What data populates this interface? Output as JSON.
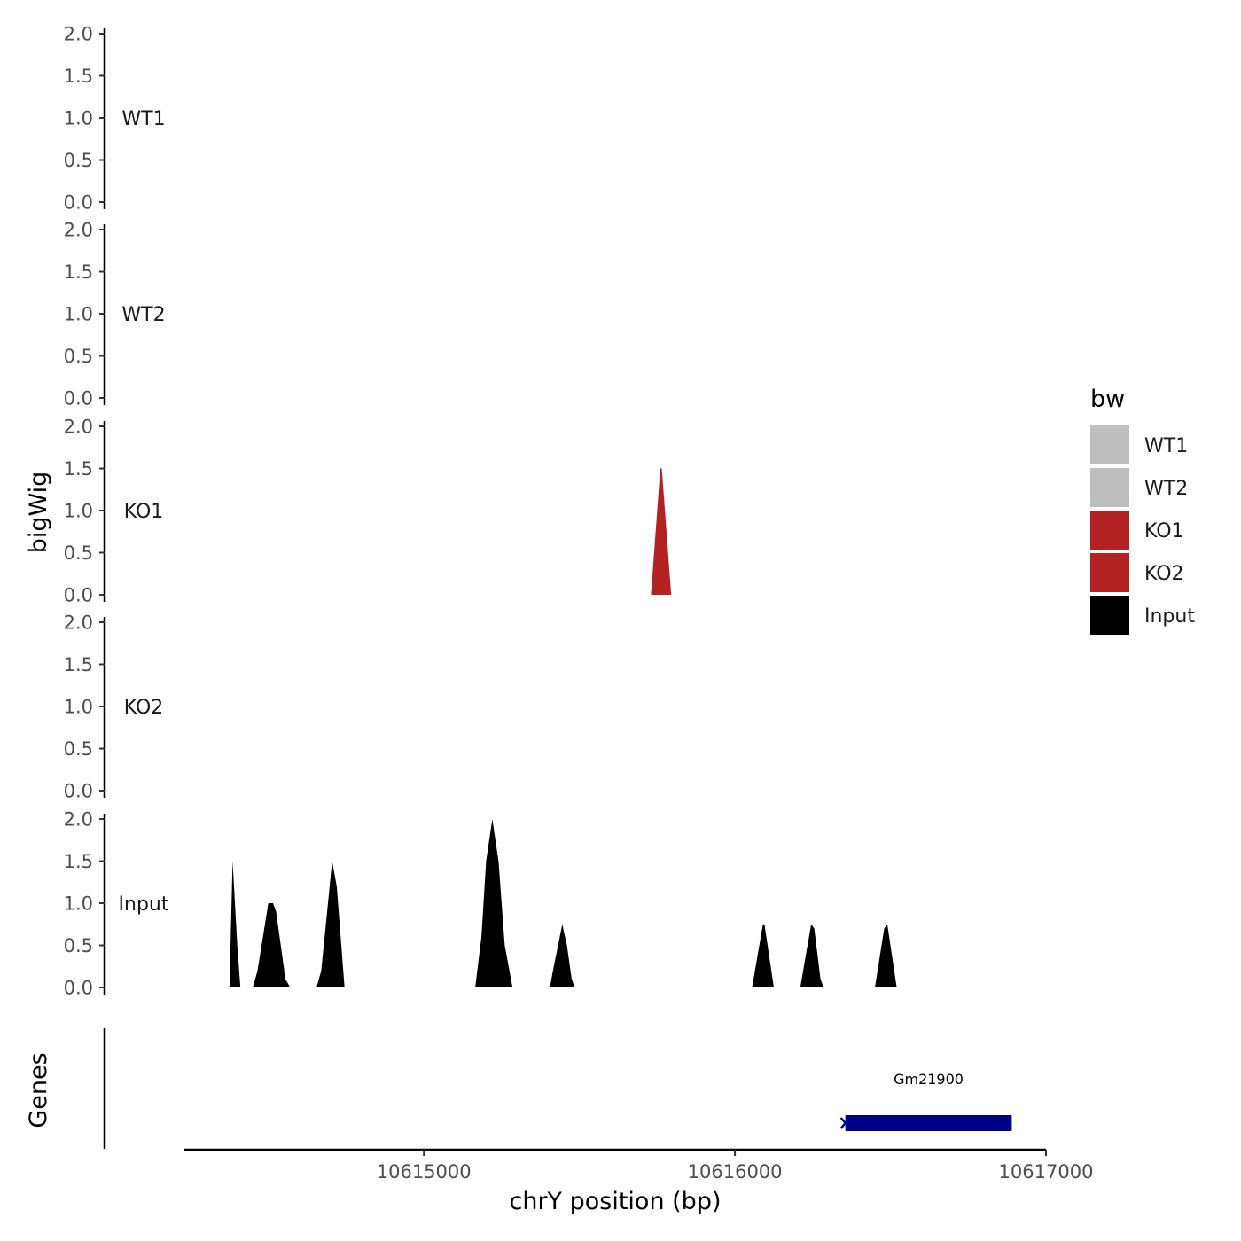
{
  "chart_data": {
    "type": "area",
    "xlabel": "chrY position (bp)",
    "ylabel": "bigWig",
    "genes_label": "Genes",
    "xlim": [
      10614230,
      10617000
    ],
    "ylim": [
      0,
      2
    ],
    "x_ticks": [
      10615000,
      10616000,
      10617000
    ],
    "x_tick_labels": [
      "10615000",
      "10616000",
      "10617000"
    ],
    "y_ticks": [
      0,
      0.5,
      1,
      1.5,
      2
    ],
    "y_tick_labels": [
      "0.0",
      "0.5",
      "1.0",
      "1.5",
      "2.0"
    ],
    "tracks": [
      {
        "name": "WT1",
        "color": "#bebebe",
        "points": []
      },
      {
        "name": "WT2",
        "color": "#bebebe",
        "points": []
      },
      {
        "name": "KO1",
        "color": "#b22222",
        "points": [
          [
            10615730,
            0
          ],
          [
            10615760,
            1.5
          ],
          [
            10615765,
            1.5
          ],
          [
            10615795,
            0
          ]
        ]
      },
      {
        "name": "KO2",
        "color": "#b22222",
        "points": []
      },
      {
        "name": "Input",
        "color": "#000000",
        "points": [
          [
            10614375,
            0
          ],
          [
            10614385,
            1.5
          ],
          [
            10614400,
            0.5
          ],
          [
            10614410,
            0
          ],
          [
            10614410,
            null
          ],
          [
            10614450,
            0
          ],
          [
            10614465,
            0.2
          ],
          [
            10614500,
            1.0
          ],
          [
            10614515,
            1.0
          ],
          [
            10614525,
            0.9
          ],
          [
            10614555,
            0.1
          ],
          [
            10614570,
            0
          ],
          [
            10614570,
            null
          ],
          [
            10614655,
            0
          ],
          [
            10614670,
            0.2
          ],
          [
            10614705,
            1.5
          ],
          [
            10614720,
            1.2
          ],
          [
            10614745,
            0
          ],
          [
            10614745,
            null
          ],
          [
            10615165,
            0
          ],
          [
            10615185,
            0.6
          ],
          [
            10615200,
            1.5
          ],
          [
            10615220,
            2.0
          ],
          [
            10615240,
            1.5
          ],
          [
            10615260,
            0.5
          ],
          [
            10615285,
            0
          ],
          [
            10615285,
            null
          ],
          [
            10615405,
            0
          ],
          [
            10615415,
            0.2
          ],
          [
            10615445,
            0.75
          ],
          [
            10615460,
            0.5
          ],
          [
            10615475,
            0.1
          ],
          [
            10615485,
            0
          ],
          [
            10615485,
            null
          ],
          [
            10616055,
            0
          ],
          [
            10616090,
            0.75
          ],
          [
            10616095,
            0.75
          ],
          [
            10616125,
            0
          ],
          [
            10616125,
            null
          ],
          [
            10616210,
            0
          ],
          [
            10616245,
            0.75
          ],
          [
            10616255,
            0.7
          ],
          [
            10616275,
            0.1
          ],
          [
            10616285,
            0
          ],
          [
            10616285,
            null
          ],
          [
            10616450,
            0
          ],
          [
            10616480,
            0.7
          ],
          [
            10616490,
            0.75
          ],
          [
            10616520,
            0
          ]
        ]
      }
    ],
    "gene": {
      "name": "Gm21900",
      "start": 10616355,
      "end": 10616890,
      "color": "#00008b",
      "strand": "-"
    },
    "legend": {
      "title": "bw",
      "position": "right",
      "entries": [
        {
          "label": "WT1",
          "color": "#bebebe"
        },
        {
          "label": "WT2",
          "color": "#bebebe"
        },
        {
          "label": "KO1",
          "color": "#b22222"
        },
        {
          "label": "KO2",
          "color": "#b22222"
        },
        {
          "label": "Input",
          "color": "#000000"
        }
      ]
    },
    "grid": false
  }
}
